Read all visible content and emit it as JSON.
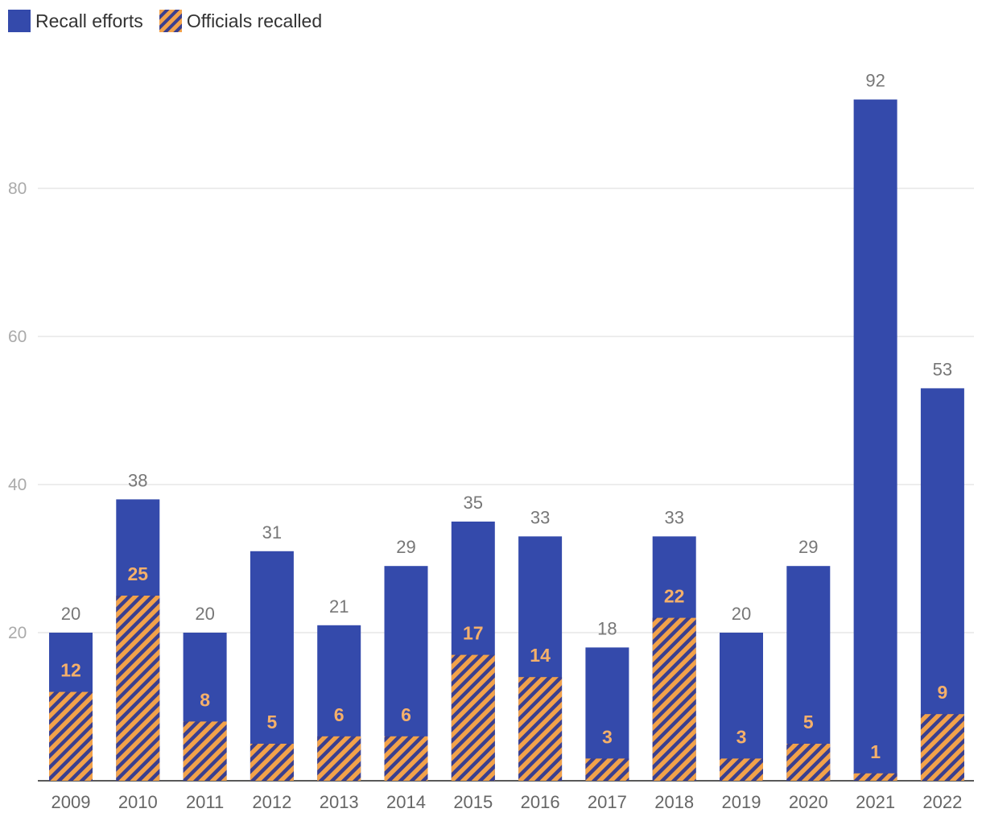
{
  "chart_data": {
    "type": "bar",
    "categories": [
      "2009",
      "2010",
      "2011",
      "2012",
      "2013",
      "2014",
      "2015",
      "2016",
      "2017",
      "2018",
      "2019",
      "2020",
      "2021",
      "2022"
    ],
    "series": [
      {
        "name": "Recall efforts",
        "values": [
          20,
          38,
          20,
          31,
          21,
          29,
          35,
          33,
          18,
          33,
          20,
          29,
          92,
          53
        ],
        "color": "#344aab"
      },
      {
        "name": "Officials recalled",
        "values": [
          12,
          25,
          8,
          5,
          6,
          6,
          17,
          14,
          3,
          22,
          3,
          5,
          1,
          9
        ],
        "color": "#f2a24a",
        "pattern": "diagonal-stripes"
      }
    ],
    "yticks": [
      20,
      40,
      60,
      80
    ],
    "ylim": [
      0,
      100
    ],
    "title": "",
    "xlabel": "",
    "ylabel": "",
    "legend_position": "top-left",
    "grid": true
  }
}
